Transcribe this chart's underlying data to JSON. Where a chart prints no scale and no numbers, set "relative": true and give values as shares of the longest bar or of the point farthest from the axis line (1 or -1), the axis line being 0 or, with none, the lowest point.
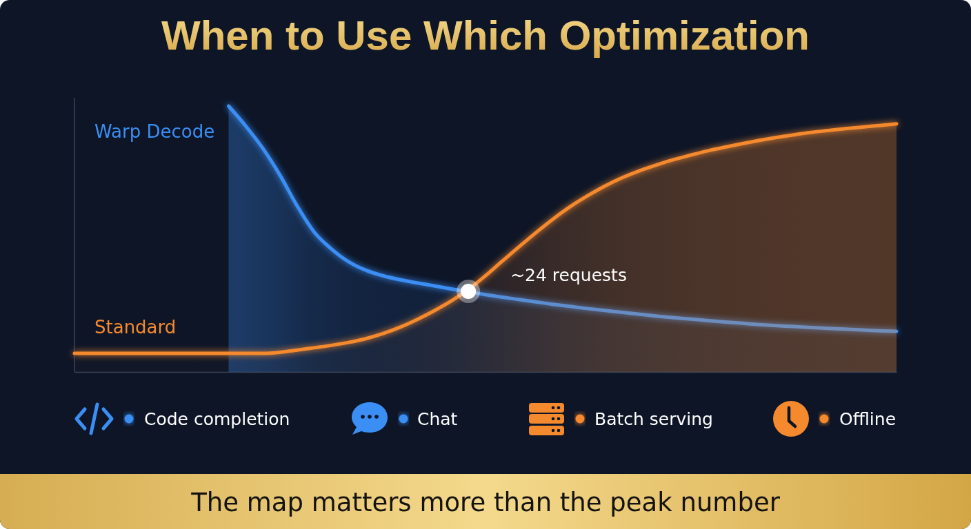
{
  "chart_data": {
    "type": "area",
    "title": "When to Use Which Optimization",
    "relative": true,
    "categories": [
      null,
      null,
      null,
      null,
      null,
      null,
      null,
      null,
      null,
      null,
      null,
      null,
      null,
      null,
      null,
      null,
      null,
      null,
      null,
      null,
      null,
      null,
      null,
      null,
      null,
      null,
      null,
      null,
      null,
      null,
      null,
      null,
      null,
      null,
      null,
      null,
      null,
      null,
      null,
      null,
      null,
      null,
      null,
      null,
      null,
      null,
      null,
      null,
      null
    ],
    "series": [
      {
        "name": "Warp Decode",
        "color": "#3b8ef3",
        "values": [
          null,
          null,
          null,
          null,
          null,
          null,
          null,
          null,
          null,
          1.0,
          0.925,
          0.841,
          0.74,
          0.625,
          0.526,
          0.463,
          0.415,
          0.383,
          0.362,
          0.347,
          0.335,
          0.324,
          0.312,
          0.301,
          0.291,
          0.281,
          0.272,
          0.263,
          0.254,
          0.246,
          0.238,
          0.231,
          0.224,
          0.217,
          0.21,
          0.204,
          0.199,
          0.193,
          0.188,
          0.183,
          0.178,
          0.174,
          0.171,
          0.167,
          0.164,
          0.161,
          0.158,
          0.155,
          0.153
        ]
      },
      {
        "name": "Standard",
        "color": "#f5892e",
        "values": [
          0.07,
          0.07,
          0.07,
          0.07,
          0.07,
          0.07,
          0.07,
          0.07,
          0.07,
          0.07,
          0.07,
          0.07,
          0.074,
          0.082,
          0.091,
          0.1,
          0.111,
          0.125,
          0.144,
          0.168,
          0.197,
          0.23,
          0.267,
          0.31,
          0.362,
          0.418,
          0.473,
          0.527,
          0.578,
          0.624,
          0.664,
          0.7,
          0.731,
          0.757,
          0.779,
          0.799,
          0.816,
          0.832,
          0.846,
          0.859,
          0.871,
          0.882,
          0.892,
          0.901,
          0.908,
          0.915,
          0.921,
          0.927,
          0.933
        ]
      },
      {
        "type": "line",
        "color": "#ffffff",
        "marker": "circle",
        "values": [
          null,
          null,
          null,
          null,
          null,
          null,
          null,
          null,
          null,
          null,
          null,
          null,
          null,
          null,
          null,
          null,
          null,
          null,
          null,
          null,
          null,
          null,
          null,
          0.303,
          null,
          null,
          null,
          null,
          null,
          null,
          null,
          null,
          null,
          null,
          null,
          null,
          null,
          null,
          null,
          null,
          null,
          null,
          null,
          null,
          null,
          null,
          null,
          null,
          null
        ]
      }
    ],
    "annotations": [
      "~24 requests",
      "Code completion",
      "Chat",
      "Batch serving",
      "Offline",
      "The map matters more than the peak number"
    ]
  }
}
